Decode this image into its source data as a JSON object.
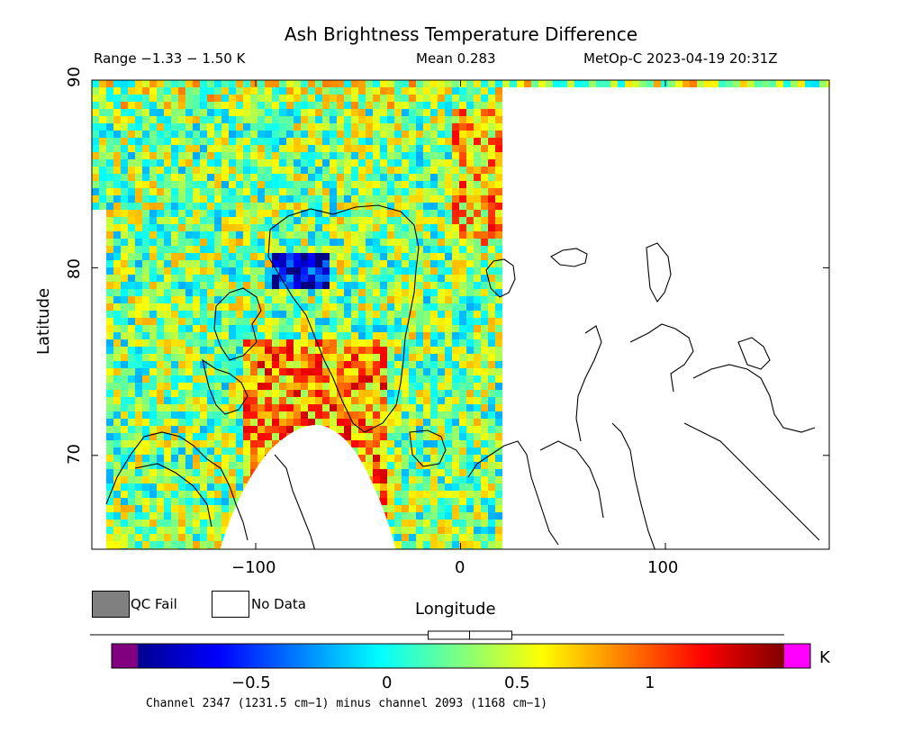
{
  "header": {
    "title": "Ash Brightness Temperature Difference",
    "range_text": "Range −1.33 − 1.50 K",
    "mean_text": "Mean 0.283",
    "platform_text": "MetOp-C 2023-04-19 20:31Z"
  },
  "axes": {
    "ylabel": "Latitude",
    "xlabel": "Longitude",
    "y_ticks": [
      "90",
      "80",
      "70"
    ],
    "x_ticks": [
      "−100",
      "0",
      "100"
    ],
    "x_range": [
      -180,
      180
    ],
    "y_range": [
      65,
      90
    ]
  },
  "legend": {
    "qc_fail": "QC Fail",
    "no_data": "No Data",
    "qc_color": "#808080",
    "nodata_color": "#ffffff"
  },
  "colorbar": {
    "ticks": [
      "−0.5",
      "0",
      "0.5",
      "1"
    ],
    "unit": "K",
    "range": [
      -1.0,
      1.5
    ],
    "mean": 0.283,
    "under_color": "#800080",
    "over_color": "#ff00ff",
    "caption": "Channel 2347 (1231.5 cm−1) minus channel 2093 (1168 cm−1)"
  }
}
